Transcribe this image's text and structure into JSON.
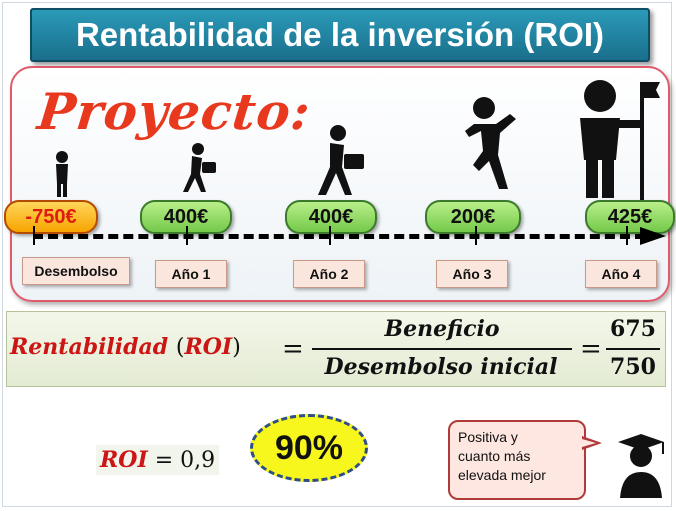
{
  "title": "Rentabilidad de la inversión (ROI)",
  "project_label": "Proyecto:",
  "timeline": {
    "cash_flows": [
      "-750€",
      "400€",
      "400€",
      "200€",
      "425€"
    ],
    "periods": [
      "Desembolso",
      "Año 1",
      "Año 2",
      "Año 3",
      "Año 4"
    ]
  },
  "formula": {
    "lhs_word": "Rentabilidad",
    "lhs_open": "(",
    "lhs_var": "ROI",
    "lhs_close": ")",
    "eq": "=",
    "numerator": "Beneficio",
    "denominator": "Desembolso inicial",
    "value_numerator": "675",
    "value_denominator": "750"
  },
  "result": {
    "roi_var": "ROI",
    "roi_value": "= 0,9",
    "percent": "90%"
  },
  "callout": {
    "line1": "Positiva y",
    "line2": "cuanto más",
    "line3": "elevada mejor"
  },
  "colors": {
    "title_bg": "#1a6f8c",
    "accent_red": "#e8381e",
    "badge_green": "#74c94a",
    "badge_orange": "#f7a400",
    "highlight_yellow": "#f7f71e"
  }
}
